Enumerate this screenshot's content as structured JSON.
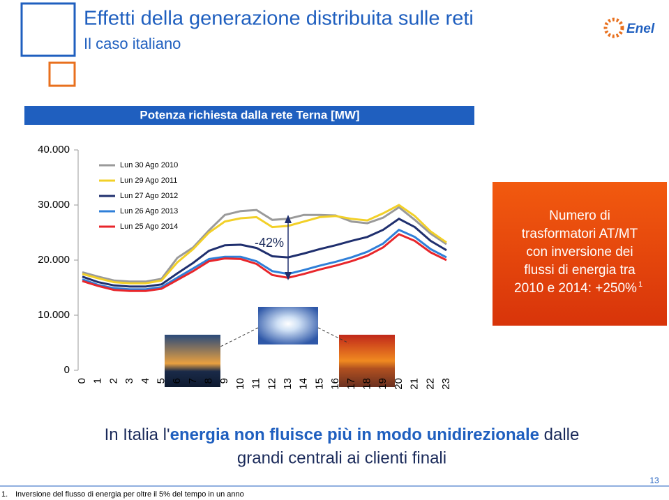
{
  "header": {
    "title": "Effetti della generazione distribuita sulle reti",
    "subtitle": "Il caso italiano",
    "logo": "Enel"
  },
  "chart_data": {
    "type": "line",
    "title": "Potenza richiesta dalla rete Terna [MW]",
    "categories": [
      "0",
      "1",
      "2",
      "3",
      "4",
      "5",
      "6",
      "7",
      "8",
      "9",
      "10",
      "11",
      "12",
      "13",
      "14",
      "15",
      "16",
      "17",
      "18",
      "19",
      "20",
      "21",
      "22",
      "23"
    ],
    "ylim": [
      0,
      40000
    ],
    "yticks": [
      0,
      {
        "value": 10000,
        "label": "10.000"
      },
      {
        "value": 20000,
        "label": "20.000"
      },
      {
        "value": 30000,
        "label": "30.000"
      },
      {
        "value": 40000,
        "label": "40.000"
      }
    ],
    "series": [
      {
        "name": "Lun 30 Ago 2010",
        "color": "#9a9a9a",
        "values": [
          17800,
          17000,
          16300,
          16100,
          16100,
          16600,
          20400,
          22300,
          25400,
          28200,
          28900,
          29100,
          27300,
          27500,
          28200,
          28200,
          28100,
          27000,
          26700,
          27700,
          29600,
          27300,
          24800,
          22900
        ]
      },
      {
        "name": "Lun 29 Ago 2011",
        "color": "#f2d028",
        "values": [
          17500,
          16700,
          16000,
          15800,
          15800,
          16300,
          19600,
          22000,
          25000,
          27000,
          27600,
          27800,
          26000,
          26200,
          27000,
          27800,
          28000,
          27500,
          27200,
          28500,
          30000,
          28000,
          25200,
          23200
        ]
      },
      {
        "name": "Lun 27 Ago 2012",
        "color": "#1f2f6e",
        "values": [
          17000,
          16000,
          15400,
          15200,
          15200,
          15600,
          17600,
          19500,
          21700,
          22700,
          22800,
          22200,
          20700,
          20500,
          21200,
          22000,
          22700,
          23500,
          24200,
          25500,
          27500,
          26000,
          23500,
          21800
        ]
      },
      {
        "name": "Lun 26 Ago 2013",
        "color": "#2f7fd8",
        "values": [
          16500,
          15500,
          14900,
          14700,
          14700,
          15100,
          16800,
          18500,
          20200,
          20600,
          20600,
          19800,
          18000,
          17500,
          18200,
          19000,
          19700,
          20500,
          21500,
          23000,
          25500,
          24200,
          22000,
          20500
        ]
      },
      {
        "name": "Lun 25 Ago 2014",
        "color": "#e8262b",
        "values": [
          16200,
          15300,
          14600,
          14400,
          14400,
          14800,
          16400,
          18000,
          19800,
          20300,
          20200,
          19300,
          17300,
          16800,
          17500,
          18300,
          19000,
          19800,
          20800,
          22300,
          24700,
          23500,
          21400,
          20000
        ]
      }
    ],
    "annotation": "-42%"
  },
  "callout": {
    "lines": [
      "Numero di",
      "trasformatori AT/MT",
      "con inversione dei",
      "flussi di energia tra",
      "2010 e 2014: +250%"
    ],
    "note_ref": "1"
  },
  "message": {
    "parts": [
      "In Italia l'",
      "energia non fluisce più in modo unidirezionale",
      " dalle",
      "grandi centrali ai clienti finali"
    ]
  },
  "footnote": {
    "number": "1.",
    "text": "Inversione del flusso di energia per oltre il 5% del tempo in un anno"
  },
  "page_number": "13"
}
